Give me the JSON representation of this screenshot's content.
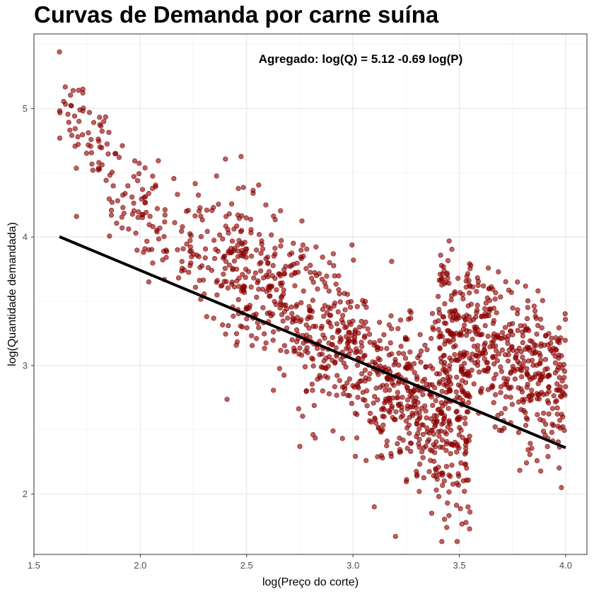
{
  "chart_data": {
    "type": "scatter",
    "title": "Curvas de Demanda por carne suína",
    "xlabel": "log(Preço do corte)",
    "ylabel": "log(Quantidade demandada)",
    "xlim": [
      1.5,
      4.1
    ],
    "ylim": [
      1.53,
      5.58
    ],
    "x_ticks": [
      1.5,
      2.0,
      2.5,
      3.0,
      3.5,
      4.0
    ],
    "x_tick_labels": [
      "1.5",
      "2.0",
      "2.5",
      "3.0",
      "3.5",
      "4.0"
    ],
    "y_ticks": [
      2,
      3,
      4,
      5
    ],
    "y_tick_labels": [
      "2",
      "3",
      "4",
      "5"
    ],
    "grid": true,
    "point_color": "#8b0000",
    "annotation": "Agregado: log(Q) = 5.12 -0.69 log(P)",
    "fit_line": {
      "intercept": 5.12,
      "slope": -0.69,
      "x_range": [
        1.62,
        4.0
      ],
      "color": "#000000"
    },
    "point_clusters": [
      {
        "x_range": [
          1.62,
          1.85
        ],
        "center_intercept": 7.3,
        "center_slope": -1.4,
        "spread": 0.16,
        "count": 55
      },
      {
        "x_range": [
          1.85,
          2.4
        ],
        "center_intercept": 6.2,
        "center_slope": -1.0,
        "spread": 0.22,
        "count": 150
      },
      {
        "x_range": [
          2.4,
          3.1
        ],
        "center_intercept": 6.55,
        "center_slope": -1.15,
        "spread": 0.3,
        "count": 480
      },
      {
        "x_range": [
          3.1,
          3.55
        ],
        "center_intercept": 6.3,
        "center_slope": -1.1,
        "spread": 0.32,
        "count": 420
      },
      {
        "x_range": [
          3.4,
          4.0
        ],
        "center_intercept": 6.6,
        "center_slope": -0.95,
        "spread": 0.28,
        "count": 520
      }
    ],
    "outliers": [
      {
        "x": 1.62,
        "y": 5.44
      },
      {
        "x": 1.73,
        "y": 5.15
      },
      {
        "x": 3.2,
        "y": 1.67
      },
      {
        "x": 3.37,
        "y": 1.85
      },
      {
        "x": 3.1,
        "y": 1.9
      },
      {
        "x": 3.55,
        "y": 1.86
      },
      {
        "x": 3.98,
        "y": 2.05
      },
      {
        "x": 1.7,
        "y": 4.16
      },
      {
        "x": 2.04,
        "y": 3.65
      },
      {
        "x": 2.75,
        "y": 2.37
      },
      {
        "x": 3.41,
        "y": 3.71
      },
      {
        "x": 3.87,
        "y": 3.58
      }
    ]
  }
}
